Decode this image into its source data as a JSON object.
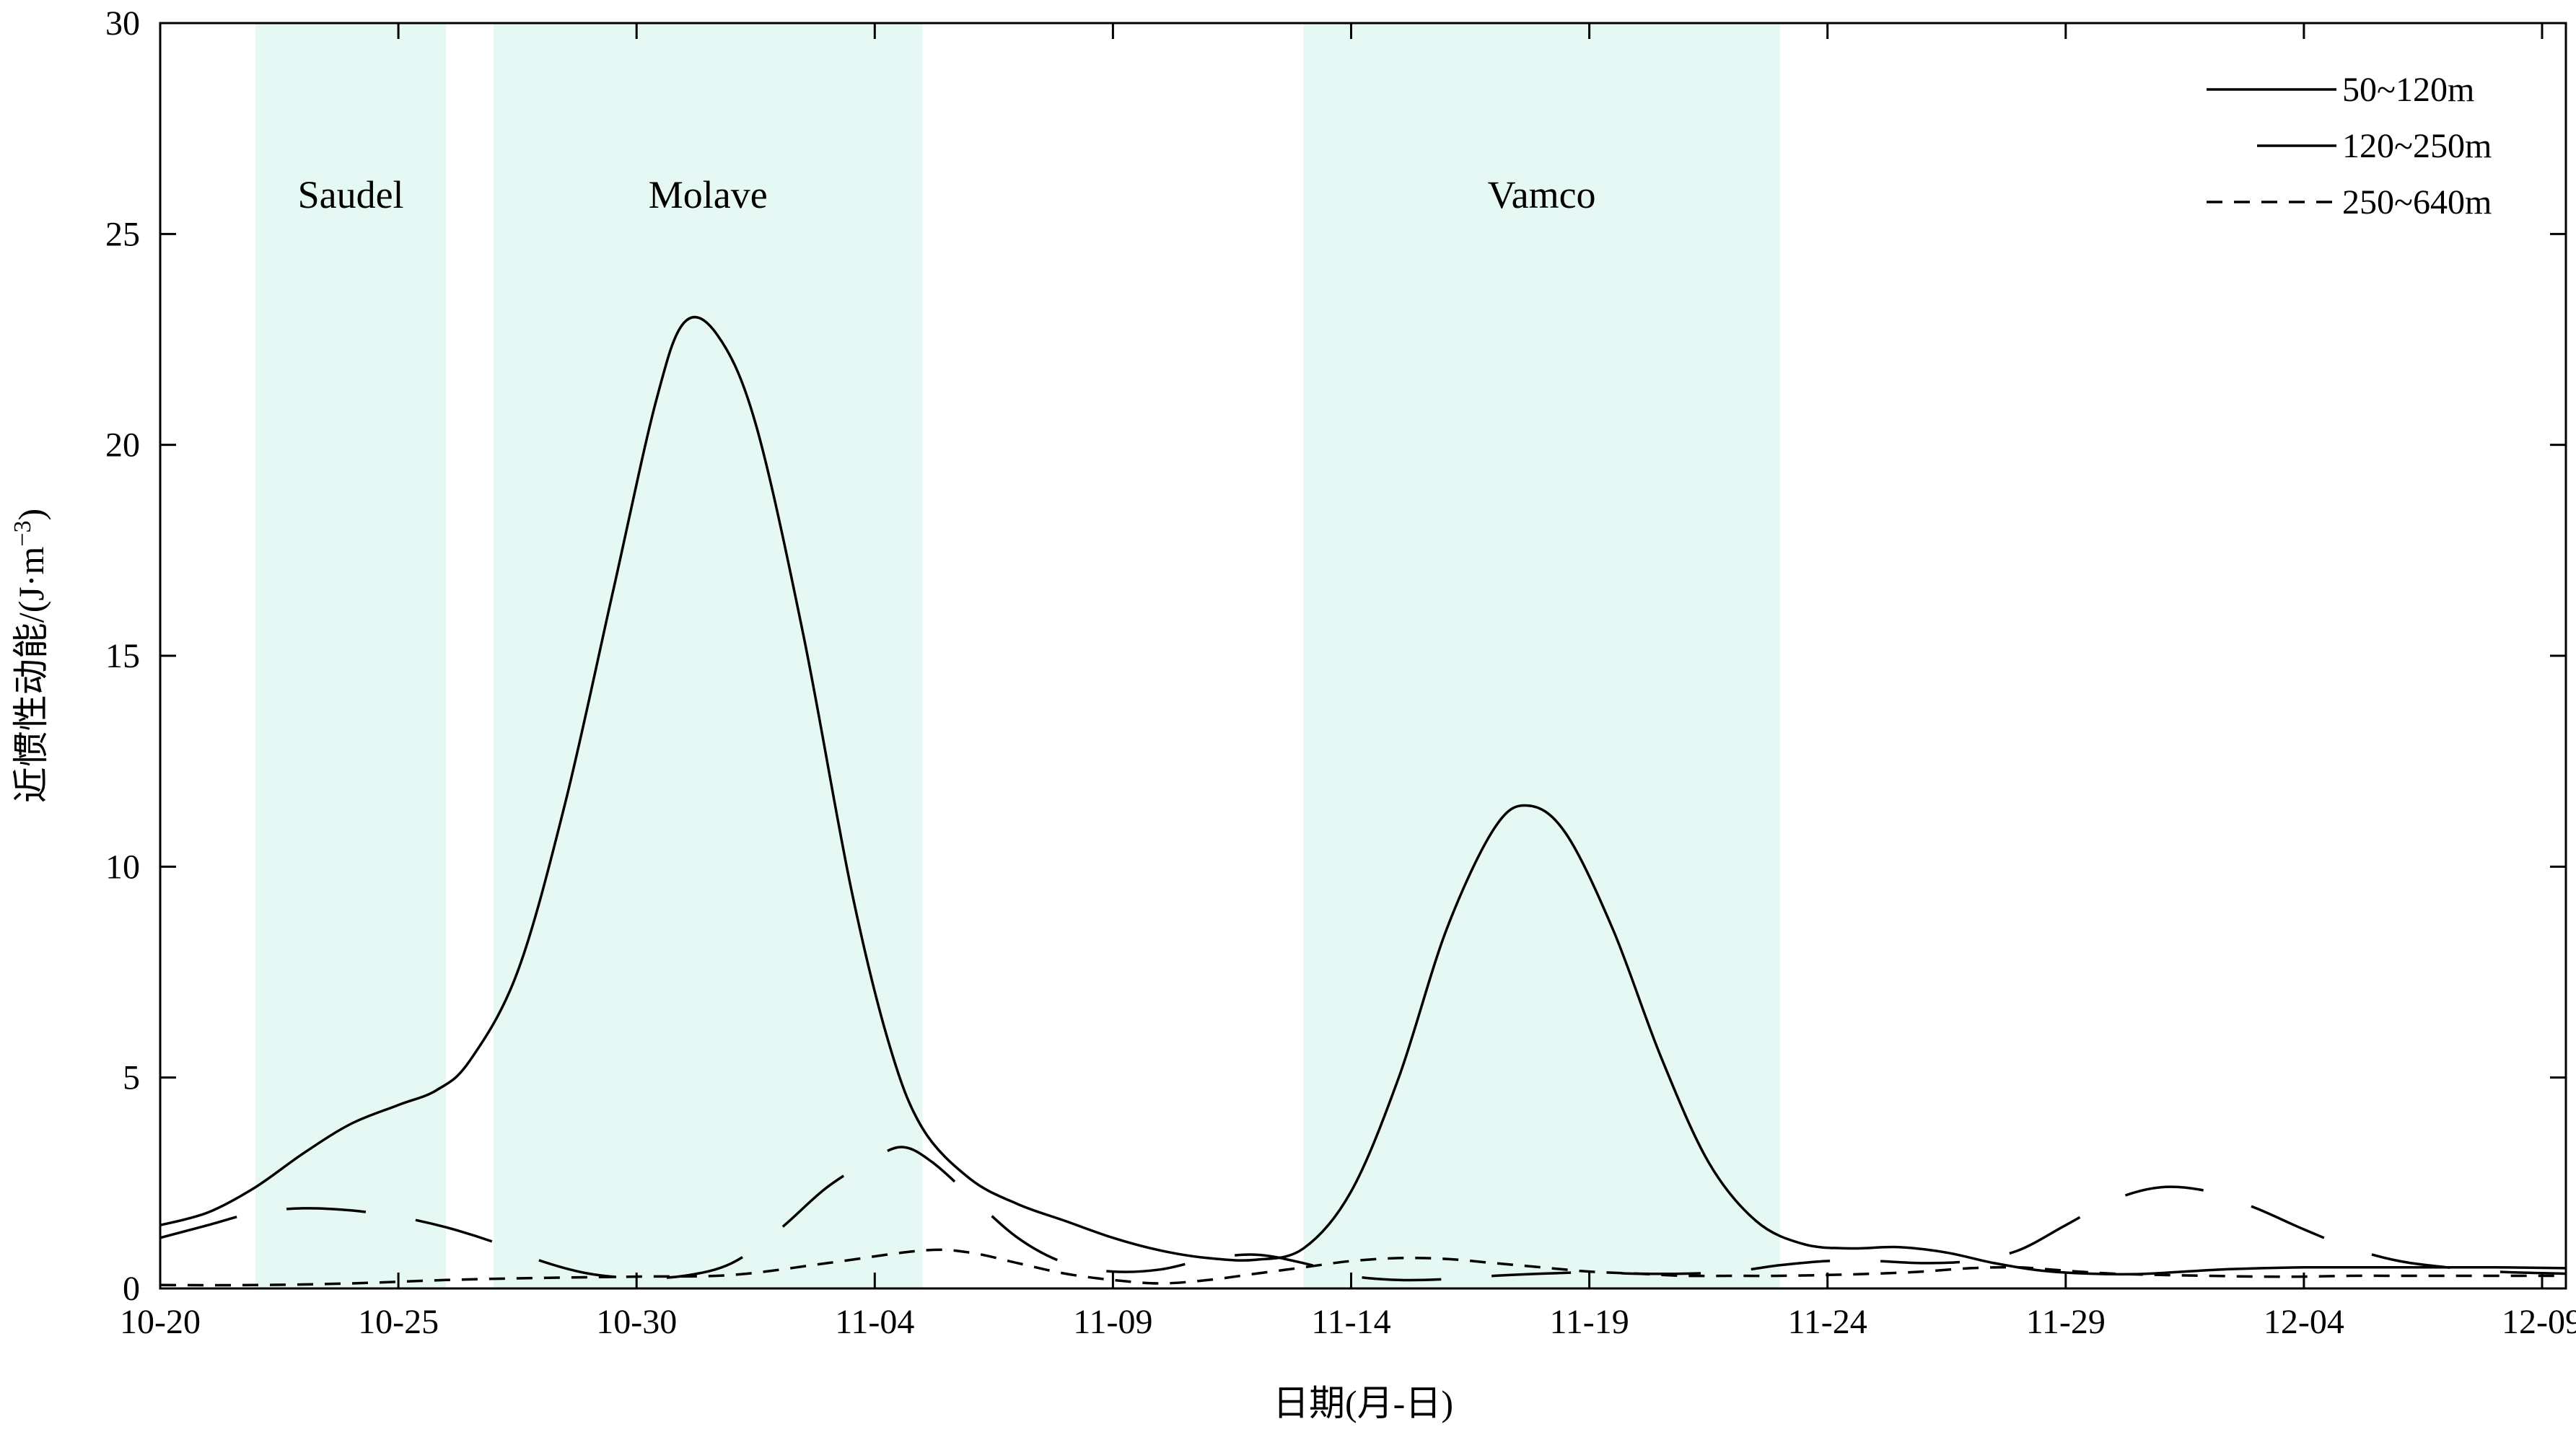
{
  "chart_data": {
    "type": "line",
    "title": "",
    "xlabel": "日期(月-日)",
    "ylabel": "近惯性动能/(J·m⁻³)",
    "ylabel_parts": {
      "main": "近惯性动能/(J·m",
      "sup": "−3",
      "close": ")"
    },
    "x_start": "10-20",
    "x_tick_labels": [
      "10-20",
      "10-25",
      "10-30",
      "11-04",
      "11-09",
      "11-14",
      "11-19",
      "11-24",
      "11-29",
      "12-04",
      "12-09"
    ],
    "xlim_days": [
      0,
      50.5
    ],
    "ylim": [
      0,
      30
    ],
    "y_ticks": [
      0,
      5,
      10,
      15,
      20,
      25,
      30
    ],
    "legend_position": "top-right",
    "shaded_periods": [
      {
        "label": "Saudel",
        "start": "10-22",
        "end": "10-26",
        "start_day": 2.0,
        "end_day": 6.0,
        "color": "#e6f8f4"
      },
      {
        "label": "Molave",
        "start": "10-27",
        "end": "11-05",
        "start_day": 7.0,
        "end_day": 16.0,
        "color": "#e6f8f4"
      },
      {
        "label": "Vamco",
        "start": "11-13",
        "end": "11-23",
        "start_day": 24.0,
        "end_day": 34.0,
        "color": "#e6f8f4"
      }
    ],
    "series": [
      {
        "name": "50~120m",
        "style": "solid",
        "points": [
          [
            0,
            1.5
          ],
          [
            1,
            1.8
          ],
          [
            2,
            2.4
          ],
          [
            3,
            3.2
          ],
          [
            4,
            3.9
          ],
          [
            5,
            4.35
          ],
          [
            5.8,
            4.7
          ],
          [
            6.5,
            5.4
          ],
          [
            7.5,
            7.5
          ],
          [
            8.5,
            11.5
          ],
          [
            9.5,
            16.5
          ],
          [
            10.4,
            21
          ],
          [
            11,
            22.9
          ],
          [
            11.7,
            22.6
          ],
          [
            12.5,
            20.5
          ],
          [
            13.5,
            15.5
          ],
          [
            14.5,
            9.5
          ],
          [
            15.3,
            5.8
          ],
          [
            16,
            3.8
          ],
          [
            17,
            2.6
          ],
          [
            18,
            2.0
          ],
          [
            19,
            1.6
          ],
          [
            20,
            1.2
          ],
          [
            21,
            0.9
          ],
          [
            22,
            0.72
          ],
          [
            23,
            0.68
          ],
          [
            24,
            0.95
          ],
          [
            25,
            2.3
          ],
          [
            26,
            5.0
          ],
          [
            27,
            8.5
          ],
          [
            28,
            10.9
          ],
          [
            28.7,
            11.45
          ],
          [
            29.5,
            10.8
          ],
          [
            30.5,
            8.5
          ],
          [
            31.5,
            5.5
          ],
          [
            32.5,
            3.0
          ],
          [
            33.5,
            1.6
          ],
          [
            34.5,
            1.05
          ],
          [
            35.5,
            0.95
          ],
          [
            36.5,
            0.98
          ],
          [
            37.5,
            0.85
          ],
          [
            38.5,
            0.6
          ],
          [
            39.5,
            0.42
          ],
          [
            40.5,
            0.35
          ],
          [
            41.5,
            0.34
          ],
          [
            42.5,
            0.4
          ],
          [
            43.5,
            0.46
          ],
          [
            45,
            0.5
          ],
          [
            47,
            0.5
          ],
          [
            49,
            0.5
          ],
          [
            50.5,
            0.48
          ]
        ]
      },
      {
        "name": "120~250m",
        "style": "long-dash",
        "points": [
          [
            0,
            1.2
          ],
          [
            1,
            1.5
          ],
          [
            2,
            1.8
          ],
          [
            3,
            1.9
          ],
          [
            4,
            1.85
          ],
          [
            5,
            1.7
          ],
          [
            6,
            1.45
          ],
          [
            7,
            1.1
          ],
          [
            8,
            0.65
          ],
          [
            9,
            0.35
          ],
          [
            10,
            0.25
          ],
          [
            11,
            0.3
          ],
          [
            12,
            0.6
          ],
          [
            13,
            1.4
          ],
          [
            14,
            2.4
          ],
          [
            15,
            3.1
          ],
          [
            15.6,
            3.35
          ],
          [
            16.2,
            3.0
          ],
          [
            17,
            2.2
          ],
          [
            18,
            1.2
          ],
          [
            19,
            0.6
          ],
          [
            20,
            0.4
          ],
          [
            21,
            0.45
          ],
          [
            22,
            0.7
          ],
          [
            23,
            0.8
          ],
          [
            24,
            0.6
          ],
          [
            25,
            0.3
          ],
          [
            26,
            0.2
          ],
          [
            27,
            0.22
          ],
          [
            28,
            0.3
          ],
          [
            29,
            0.35
          ],
          [
            30,
            0.38
          ],
          [
            31,
            0.35
          ],
          [
            32,
            0.35
          ],
          [
            33,
            0.4
          ],
          [
            34,
            0.55
          ],
          [
            35,
            0.65
          ],
          [
            36,
            0.65
          ],
          [
            37,
            0.6
          ],
          [
            38,
            0.65
          ],
          [
            39,
            0.9
          ],
          [
            40,
            1.5
          ],
          [
            41,
            2.1
          ],
          [
            42,
            2.4
          ],
          [
            43,
            2.3
          ],
          [
            44,
            1.9
          ],
          [
            45,
            1.4
          ],
          [
            46,
            0.95
          ],
          [
            47,
            0.65
          ],
          [
            48,
            0.5
          ],
          [
            49,
            0.4
          ],
          [
            50.5,
            0.35
          ]
        ]
      },
      {
        "name": "250~640m",
        "style": "short-dash",
        "points": [
          [
            0,
            0.08
          ],
          [
            2,
            0.08
          ],
          [
            4,
            0.12
          ],
          [
            6,
            0.2
          ],
          [
            8,
            0.25
          ],
          [
            10,
            0.28
          ],
          [
            12,
            0.32
          ],
          [
            14,
            0.6
          ],
          [
            16,
            0.9
          ],
          [
            17,
            0.85
          ],
          [
            18,
            0.6
          ],
          [
            19,
            0.35
          ],
          [
            20,
            0.2
          ],
          [
            21,
            0.12
          ],
          [
            22,
            0.2
          ],
          [
            23,
            0.35
          ],
          [
            24,
            0.5
          ],
          [
            25,
            0.65
          ],
          [
            26,
            0.72
          ],
          [
            27,
            0.7
          ],
          [
            28,
            0.6
          ],
          [
            29,
            0.5
          ],
          [
            30,
            0.4
          ],
          [
            31,
            0.35
          ],
          [
            32,
            0.3
          ],
          [
            33,
            0.3
          ],
          [
            34,
            0.3
          ],
          [
            35,
            0.32
          ],
          [
            36,
            0.35
          ],
          [
            37,
            0.4
          ],
          [
            38,
            0.48
          ],
          [
            39,
            0.5
          ],
          [
            40,
            0.42
          ],
          [
            41,
            0.35
          ],
          [
            42,
            0.32
          ],
          [
            43,
            0.3
          ],
          [
            44,
            0.28
          ],
          [
            45,
            0.28
          ],
          [
            46,
            0.3
          ],
          [
            47,
            0.3
          ],
          [
            48,
            0.3
          ],
          [
            49,
            0.3
          ],
          [
            50.5,
            0.3
          ]
        ]
      }
    ]
  }
}
